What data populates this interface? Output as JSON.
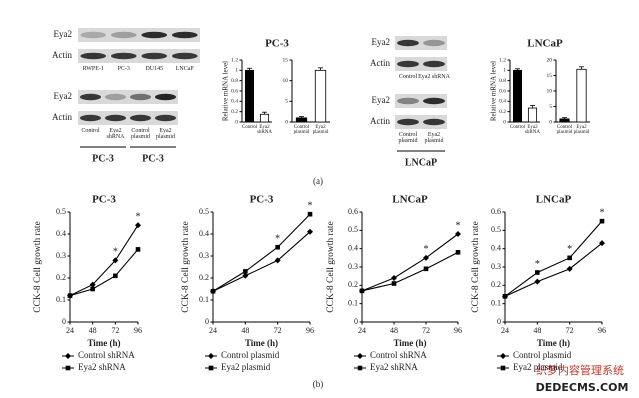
{
  "panel_labels": [
    "(a)",
    "(b)"
  ],
  "watermark": [
    "织梦内容管理系统",
    "DEDECMS.COM"
  ],
  "blots": [
    {
      "rows": [
        "Eya2",
        "Actin"
      ],
      "lanes": [
        "RWPE-1",
        "PC-3",
        "DU145",
        "LNCaP"
      ]
    },
    {
      "rows": [
        "Eya2",
        "Actin"
      ],
      "lanes": [
        "Control",
        "Eya2 shRNA",
        "Control plasmid",
        "Eya2 plasmid"
      ],
      "groups": [
        "PC-3",
        "PC-3"
      ]
    },
    {
      "rows": [
        "Eya2",
        "Actin"
      ],
      "lanes": [
        "Control",
        "Eya2 shRNA"
      ]
    },
    {
      "rows": [
        "Eya2",
        "Actin"
      ],
      "lanes": [
        "Control plasmid",
        "Eya2 plasmid"
      ],
      "groups": [
        "LNCaP"
      ]
    }
  ],
  "chart_data": [
    {
      "type": "bar",
      "title": "PC-3",
      "y_label": "Relative mRNA level",
      "categories": [
        "Control",
        "Eya2 shRNA"
      ],
      "values": [
        1.0,
        0.15
      ],
      "errors": [
        0.04,
        0.04
      ],
      "colors": [
        "#000000",
        "#ffffff"
      ],
      "ylim": [
        0,
        1.2
      ],
      "yticks": [
        0,
        0.2,
        0.4,
        0.6,
        0.8,
        1,
        1.2
      ]
    },
    {
      "type": "bar",
      "categories": [
        "Control plasmid",
        "Eya2 plasmid"
      ],
      "values": [
        1,
        12.5
      ],
      "errors": [
        0.3,
        0.6
      ],
      "colors": [
        "#000000",
        "#ffffff"
      ],
      "ylim": [
        0,
        15
      ],
      "yticks": [
        0,
        5,
        10,
        15
      ]
    },
    {
      "type": "bar",
      "title": "LNCaP",
      "y_label": "Relative mRNA level",
      "categories": [
        "Control",
        "Eya2 shRNA"
      ],
      "values": [
        1.0,
        0.27
      ],
      "errors": [
        0.03,
        0.05
      ],
      "colors": [
        "#000000",
        "#ffffff"
      ],
      "ylim": [
        0,
        1.2
      ],
      "yticks": [
        0,
        0.2,
        0.4,
        0.6,
        0.8,
        1,
        1.2
      ]
    },
    {
      "type": "bar",
      "categories": [
        "Control plasmid",
        "Eya2 plasmid"
      ],
      "values": [
        1,
        17
      ],
      "errors": [
        0.4,
        0.8
      ],
      "colors": [
        "#000000",
        "#ffffff"
      ],
      "ylim": [
        0,
        20
      ],
      "yticks": [
        0,
        5,
        10,
        15,
        20
      ]
    },
    {
      "type": "line",
      "title": "PC-3",
      "x_label": "Time (h)",
      "y_label": "CCK-8 Cell growth rate",
      "x": [
        24,
        48,
        72,
        96
      ],
      "xlim": [
        24,
        96
      ],
      "xticks": [
        24,
        48,
        72,
        96
      ],
      "ylim": [
        0,
        0.5
      ],
      "yticks": [
        0,
        0.1,
        0.2,
        0.3,
        0.4,
        0.5
      ],
      "series": [
        {
          "name": "Control shRNA",
          "marker": "diamond",
          "color": "#000000",
          "values": [
            0.12,
            0.17,
            0.28,
            0.44
          ]
        },
        {
          "name": "Eya2 shRNA",
          "marker": "square",
          "color": "#000000",
          "values": [
            0.12,
            0.15,
            0.21,
            0.33
          ]
        }
      ],
      "annotations": [
        {
          "x": 72,
          "text": "*"
        },
        {
          "x": 96,
          "text": "*"
        }
      ]
    },
    {
      "type": "line",
      "title": "PC-3",
      "x_label": "Time (h)",
      "y_label": "CCK-8 Cell growth rate",
      "x": [
        24,
        48,
        72,
        96
      ],
      "xlim": [
        24,
        96
      ],
      "xticks": [
        24,
        48,
        72,
        96
      ],
      "ylim": [
        0,
        0.5
      ],
      "yticks": [
        0,
        0.1,
        0.2,
        0.3,
        0.4,
        0.5
      ],
      "series": [
        {
          "name": "Control plasmid",
          "marker": "diamond",
          "color": "#000000",
          "values": [
            0.14,
            0.21,
            0.28,
            0.41
          ]
        },
        {
          "name": "Eya2 plasmid",
          "marker": "square",
          "color": "#000000",
          "values": [
            0.14,
            0.23,
            0.34,
            0.49
          ]
        }
      ],
      "annotations": [
        {
          "x": 72,
          "text": "*"
        },
        {
          "x": 96,
          "text": "*"
        }
      ]
    },
    {
      "type": "line",
      "title": "LNCaP",
      "x_label": "Time (h)",
      "y_label": "CCK-8 Cell growth rate",
      "x": [
        24,
        48,
        72,
        96
      ],
      "xlim": [
        24,
        96
      ],
      "xticks": [
        24,
        48,
        72,
        96
      ],
      "ylim": [
        0,
        0.6
      ],
      "yticks": [
        0,
        0.1,
        0.2,
        0.3,
        0.4,
        0.5,
        0.6
      ],
      "series": [
        {
          "name": "Control shRNA",
          "marker": "diamond",
          "color": "#000000",
          "values": [
            0.17,
            0.24,
            0.35,
            0.48
          ]
        },
        {
          "name": "Eya2 shRNA",
          "marker": "square",
          "color": "#000000",
          "values": [
            0.17,
            0.21,
            0.29,
            0.38
          ]
        }
      ],
      "annotations": [
        {
          "x": 72,
          "text": "*"
        },
        {
          "x": 96,
          "text": "*"
        }
      ]
    },
    {
      "type": "line",
      "title": "LNCaP",
      "x_label": "Time (h)",
      "y_label": "CCK-8 Cell growth rate",
      "x": [
        24,
        48,
        72,
        96
      ],
      "xlim": [
        24,
        96
      ],
      "xticks": [
        24,
        48,
        72,
        96
      ],
      "ylim": [
        0,
        0.6
      ],
      "yticks": [
        0,
        0.1,
        0.2,
        0.3,
        0.4,
        0.5,
        0.6
      ],
      "series": [
        {
          "name": "Control plasmid",
          "marker": "diamond",
          "color": "#000000",
          "values": [
            0.14,
            0.22,
            0.29,
            0.43
          ]
        },
        {
          "name": "Eya2 plasmid",
          "marker": "square",
          "color": "#000000",
          "values": [
            0.14,
            0.27,
            0.35,
            0.55
          ]
        }
      ],
      "annotations": [
        {
          "x": 48,
          "text": "*"
        },
        {
          "x": 72,
          "text": "*"
        },
        {
          "x": 96,
          "text": "*"
        }
      ]
    }
  ]
}
